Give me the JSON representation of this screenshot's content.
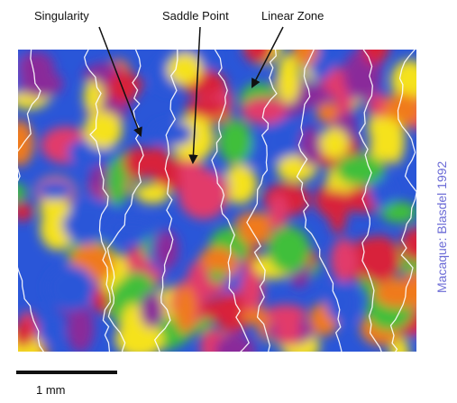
{
  "annotations": {
    "singularity": "Singularity",
    "saddle_point": "Saddle Point",
    "linear_zone": "Linear Zone"
  },
  "scale_bar": "1 mm",
  "credit": "Macaque: Blasdel 1992"
}
